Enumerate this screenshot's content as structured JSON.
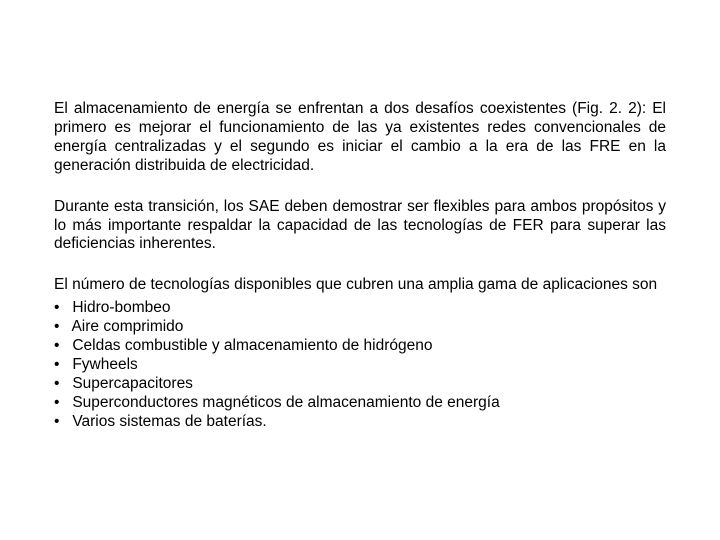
{
  "colors": {
    "text": "#000000",
    "background": "#ffffff"
  },
  "typography": {
    "font_family": "Arial",
    "font_size_pt": 12,
    "line_height": 1.22,
    "paragraph_align": "justify",
    "list_align": "left"
  },
  "paragraphs": {
    "p1": "El almacenamiento de energía se enfrentan a dos desafíos coexistentes (Fig. 2. 2): El primero es mejorar el funcionamiento de las ya existentes redes convencionales de energía centralizadas y el segundo es iniciar el cambio a la era de las FRE en la generación distribuida de electricidad.",
    "p2": "Durante esta transición, los SAE deben demostrar ser flexibles para ambos propósitos y lo más importante respaldar la capacidad de las tecnologías de FER para superar las deficiencias inherentes.",
    "p3_intro": "El número de tecnologías disponibles que cubren una amplia gama de aplicaciones son"
  },
  "bullet_char": "•",
  "list": {
    "items": [
      "Hidro-bombeo",
      "Aire comprimido",
      "Celdas combustible y almacenamiento de hidrógeno",
      "Fywheels",
      "Supercapacitores",
      "Superconductores magnéticos de almacenamiento de energía",
      "Varios sistemas de baterías."
    ]
  }
}
